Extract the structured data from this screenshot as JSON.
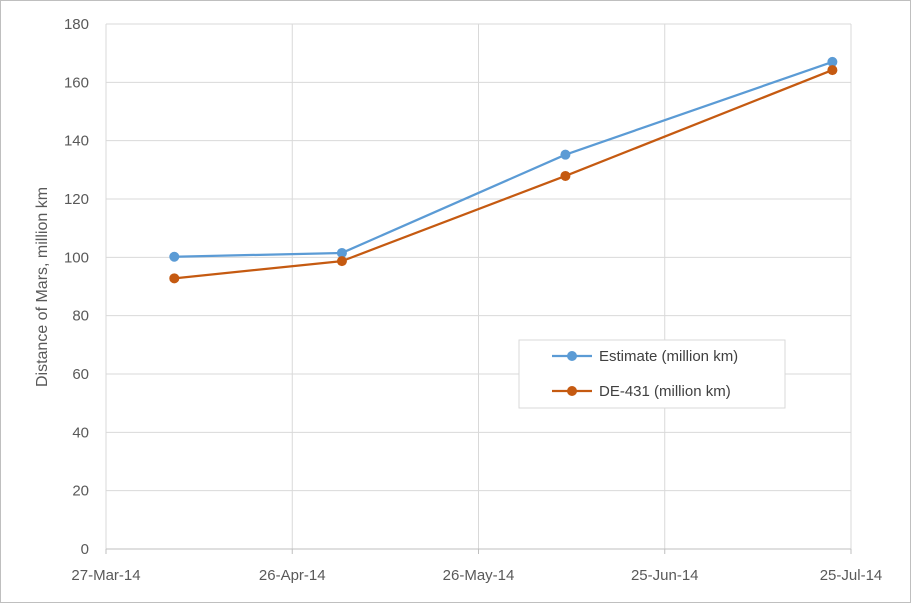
{
  "chart_data": {
    "type": "line",
    "title": "",
    "xlabel": "",
    "ylabel": "Distance of Mars, million km",
    "x_tick_labels": [
      "27-Mar-14",
      "26-Apr-14",
      "26-May-14",
      "25-Jun-14",
      "25-Jul-14"
    ],
    "x_ticks": [
      "2014-03-27",
      "2014-04-26",
      "2014-05-26",
      "2014-06-25",
      "2014-07-25"
    ],
    "xlim": [
      "2014-03-27",
      "2014-07-25"
    ],
    "ylim": [
      0,
      180
    ],
    "y_ticks": [
      0,
      20,
      40,
      60,
      80,
      100,
      120,
      140,
      160,
      180
    ],
    "x": [
      "2014-04-07",
      "2014-05-04",
      "2014-06-09",
      "2014-07-22"
    ],
    "series": [
      {
        "name": "Estimate (million km)",
        "color": "#5b9bd5",
        "values": [
          100.2,
          101.5,
          135.2,
          167.0
        ]
      },
      {
        "name": "DE-431 (million km)",
        "color": "#c55a11",
        "values": [
          92.8,
          98.7,
          127.9,
          164.2
        ]
      }
    ],
    "grid": true,
    "legend_position": "inside-right"
  }
}
